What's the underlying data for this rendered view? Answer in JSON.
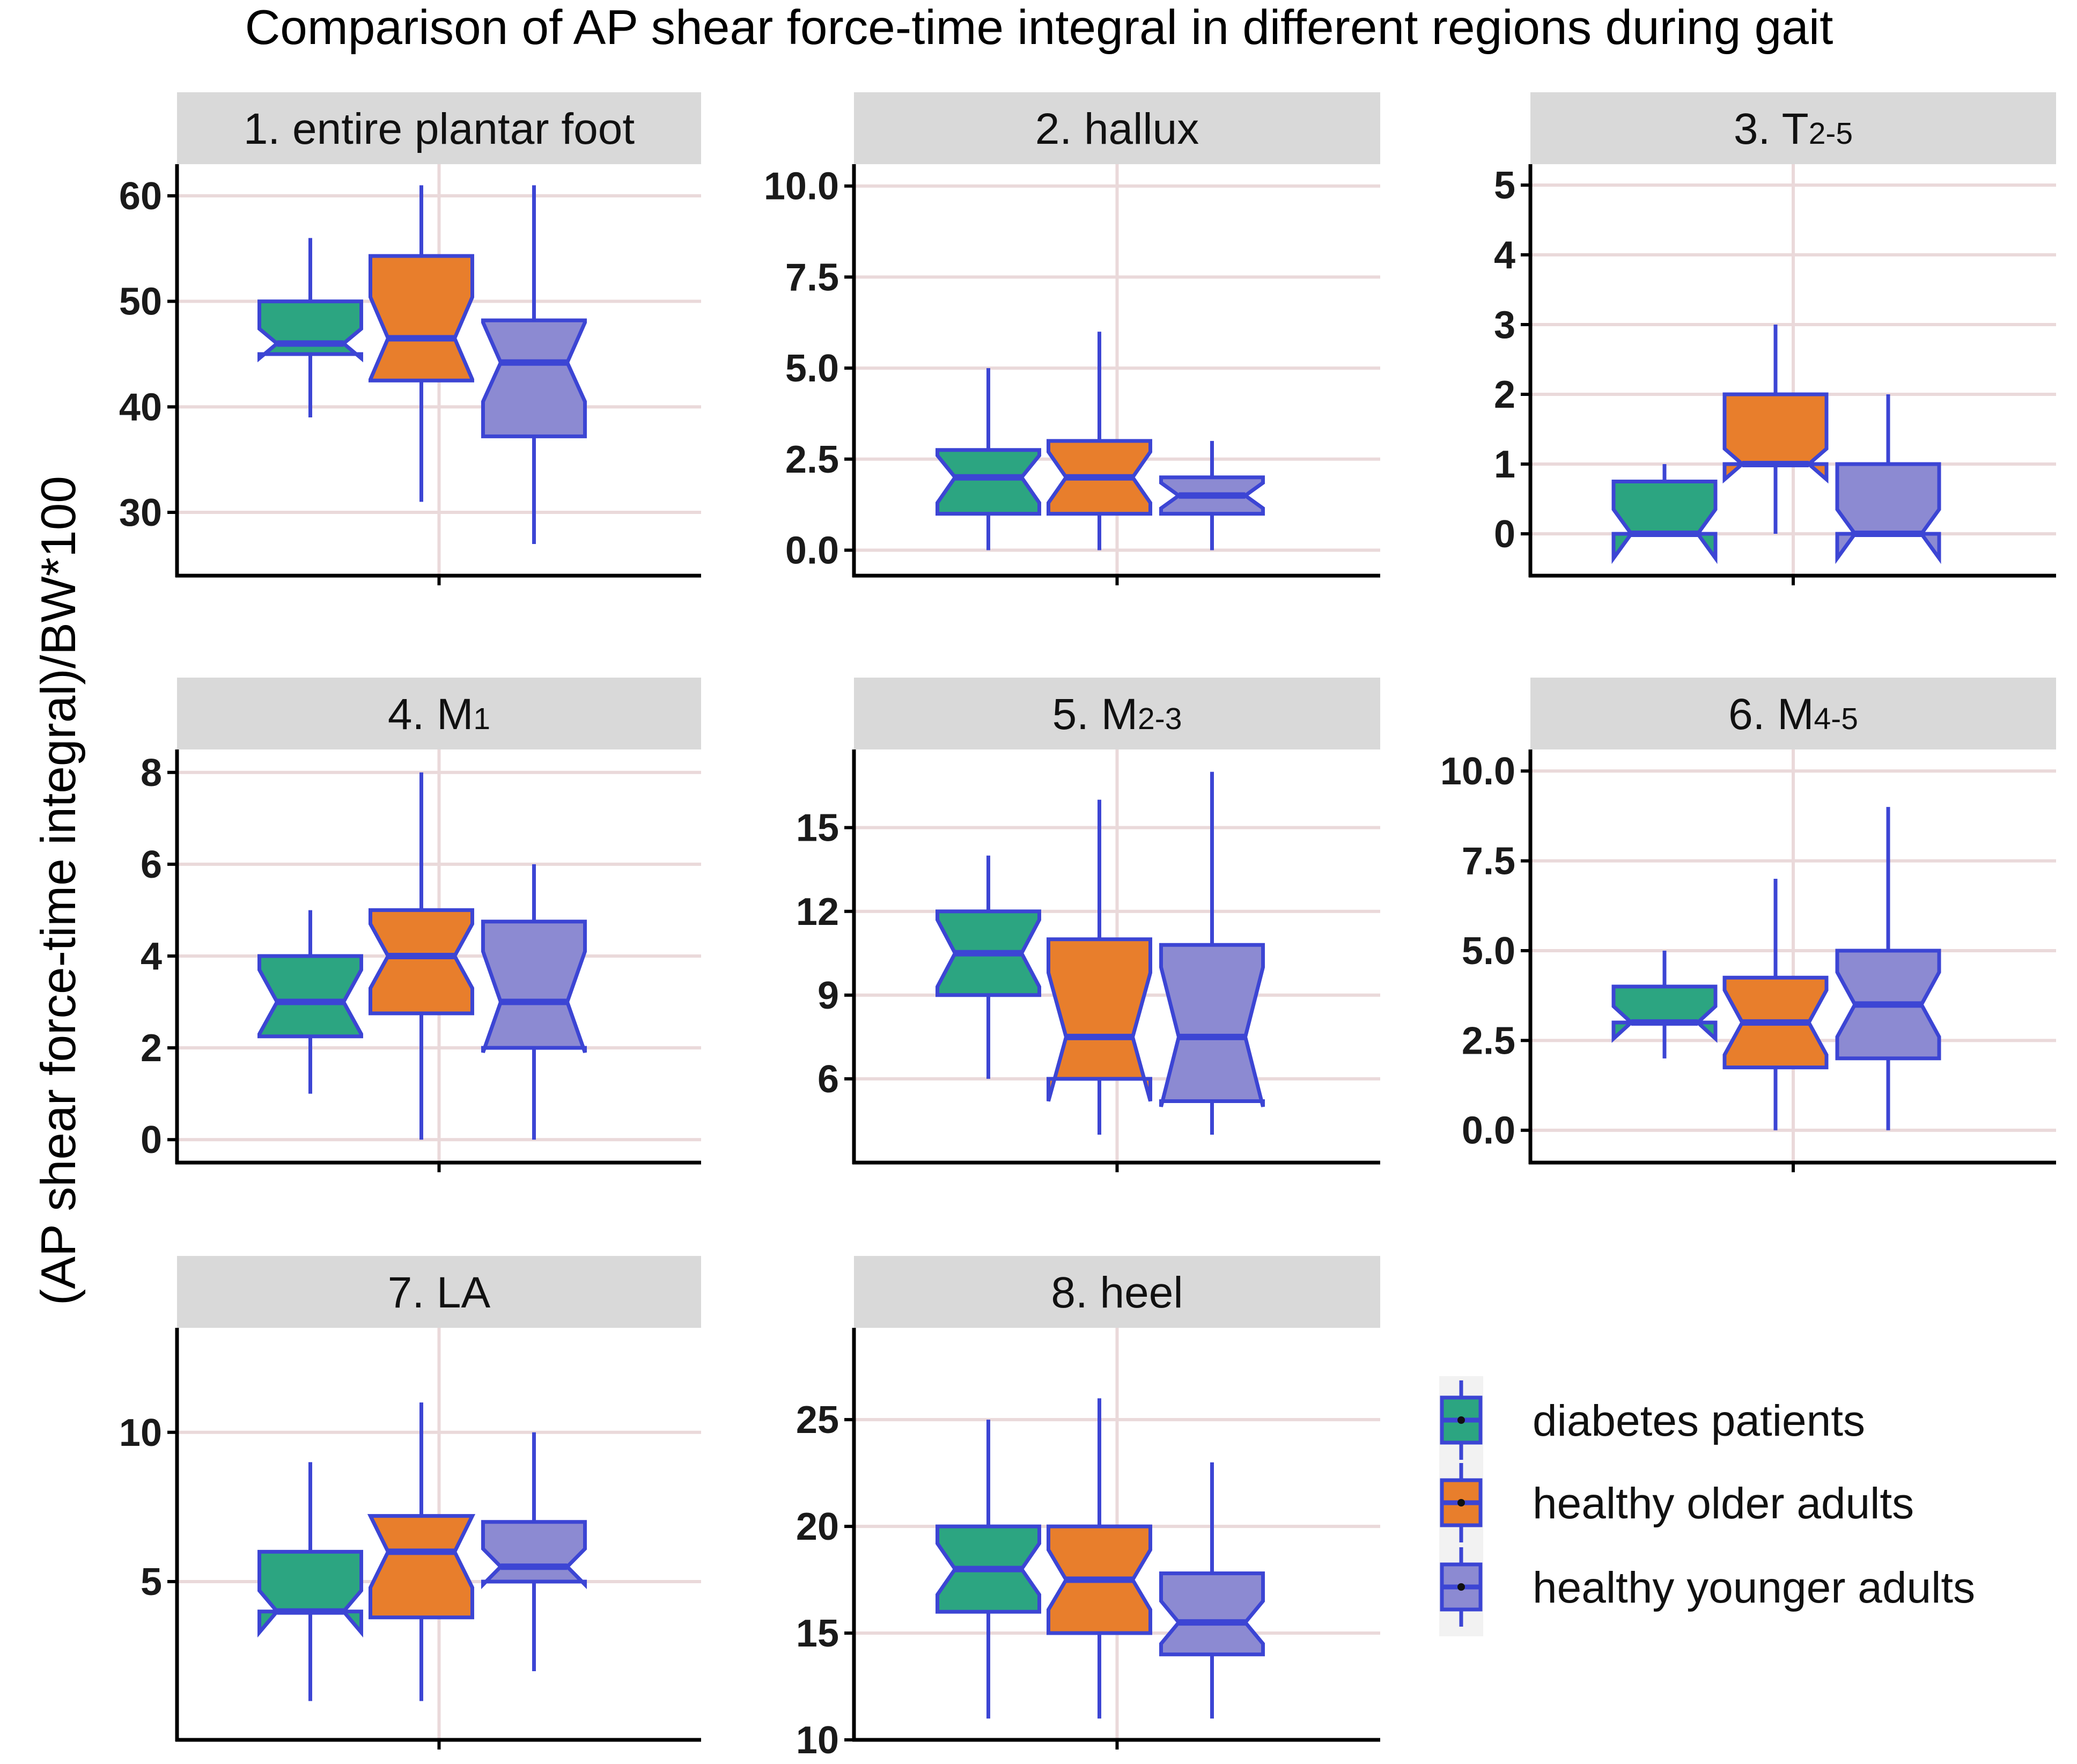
{
  "chart_data": {
    "type": "boxplot",
    "title": "Comparison of AP shear force-time integral in different regions during gait",
    "ylabel": "(AP shear force-time integral)/BW*100",
    "xlabel": "",
    "colors": {
      "diabetes patients": "#2ca581",
      "healthy older adults": "#e87e2c",
      "healthy younger adults": "#8c8ad2",
      "outline": "#3c45d4",
      "strip": "#d9d9d9",
      "grid": "#ead9da"
    },
    "legend": {
      "position": "bottom-right",
      "entries": [
        "diabetes patients",
        "healthy older adults",
        "healthy younger adults"
      ]
    },
    "panels": [
      {
        "title": "1. entire plantar foot",
        "title_main": "1. entire plantar foot",
        "title_sub": "",
        "ylim": [
          24,
          63
        ],
        "yticks": [
          30,
          40,
          50,
          60
        ],
        "ytick_labels": [
          "30",
          "40",
          "50",
          "60"
        ],
        "boxes": [
          {
            "group": "diabetes patients",
            "min": 39,
            "q1": 45,
            "median": 46,
            "q3": 50,
            "max": 56,
            "notch_low": 44.6,
            "notch_high": 47.4
          },
          {
            "group": "healthy older adults",
            "min": 31,
            "q1": 42.5,
            "median": 46.5,
            "q3": 54.3,
            "max": 61,
            "notch_low": 42.6,
            "notch_high": 50.4
          },
          {
            "group": "healthy younger adults",
            "min": 27,
            "q1": 37.2,
            "median": 44.2,
            "q3": 48.2,
            "max": 61,
            "notch_low": 40.5,
            "notch_high": 48
          }
        ]
      },
      {
        "title": "2. hallux",
        "title_main": "2. hallux",
        "title_sub": "",
        "ylim": [
          -0.7,
          10.6
        ],
        "yticks": [
          0,
          2.5,
          5,
          7.5,
          10
        ],
        "ytick_labels": [
          "0.0",
          "2.5",
          "5.0",
          "7.5",
          "10.0"
        ],
        "boxes": [
          {
            "group": "diabetes patients",
            "min": 0,
            "q1": 1,
            "median": 2,
            "q3": 2.75,
            "max": 5,
            "notch_low": 1.3,
            "notch_high": 2.6
          },
          {
            "group": "healthy older adults",
            "min": 0,
            "q1": 1,
            "median": 2,
            "q3": 3,
            "max": 6,
            "notch_low": 1.3,
            "notch_high": 2.7
          },
          {
            "group": "healthy younger adults",
            "min": 0,
            "q1": 1,
            "median": 1.5,
            "q3": 2,
            "max": 3,
            "notch_low": 1.15,
            "notch_high": 1.85
          }
        ]
      },
      {
        "title": "3. T2-5",
        "title_main": "3. T",
        "title_sub": "2-5",
        "ylim": [
          -0.6,
          5.3
        ],
        "yticks": [
          0,
          1,
          2,
          3,
          4,
          5
        ],
        "ytick_labels": [
          "0",
          "1",
          "2",
          "3",
          "4",
          "5"
        ],
        "boxes": [
          {
            "group": "diabetes patients",
            "min": 0,
            "q1": 0,
            "median": 0,
            "q3": 0.75,
            "max": 1,
            "notch_low": -0.35,
            "notch_high": 0.35
          },
          {
            "group": "healthy older adults",
            "min": 0,
            "q1": 1,
            "median": 1,
            "q3": 2,
            "max": 3,
            "notch_low": 0.78,
            "notch_high": 1.22
          },
          {
            "group": "healthy younger adults",
            "min": 0,
            "q1": 0,
            "median": 0,
            "q3": 1,
            "max": 2,
            "notch_low": -0.35,
            "notch_high": 0.35
          }
        ]
      },
      {
        "title": "4. M1",
        "title_main": "4. M",
        "title_sub": "1",
        "ylim": [
          -0.5,
          8.5
        ],
        "yticks": [
          0,
          2,
          4,
          6,
          8
        ],
        "ytick_labels": [
          "0",
          "2",
          "4",
          "6",
          "8"
        ],
        "boxes": [
          {
            "group": "diabetes patients",
            "min": 1,
            "q1": 2.25,
            "median": 3,
            "q3": 4,
            "max": 5,
            "notch_low": 2.3,
            "notch_high": 3.7
          },
          {
            "group": "healthy older adults",
            "min": 0,
            "q1": 2.75,
            "median": 4,
            "q3": 5,
            "max": 8,
            "notch_low": 3.3,
            "notch_high": 4.7
          },
          {
            "group": "healthy younger adults",
            "min": 0,
            "q1": 2,
            "median": 3,
            "q3": 4.75,
            "max": 6,
            "notch_low": 1.9,
            "notch_high": 4.1
          }
        ]
      },
      {
        "title": "5. M2-3",
        "title_main": "5. M",
        "title_sub": "2-3",
        "ylim": [
          3,
          17.8
        ],
        "yticks": [
          6,
          9,
          12,
          15
        ],
        "ytick_labels": [
          "6",
          "9",
          "12",
          "15"
        ],
        "boxes": [
          {
            "group": "diabetes patients",
            "min": 6,
            "q1": 9,
            "median": 10.5,
            "q3": 12,
            "max": 14,
            "notch_low": 9.3,
            "notch_high": 11.7
          },
          {
            "group": "healthy older adults",
            "min": 4,
            "q1": 6,
            "median": 7.5,
            "q3": 11,
            "max": 16,
            "notch_low": 5.2,
            "notch_high": 9.8
          },
          {
            "group": "healthy younger adults",
            "min": 4,
            "q1": 5.2,
            "median": 7.5,
            "q3": 10.8,
            "max": 17,
            "notch_low": 5.0,
            "notch_high": 10
          }
        ]
      },
      {
        "title": "6. M4-5",
        "title_main": "6. M",
        "title_sub": "4-5",
        "ylim": [
          -0.9,
          10.6
        ],
        "yticks": [
          0,
          2.5,
          5,
          7.5,
          10
        ],
        "ytick_labels": [
          "0.0",
          "2.5",
          "5.0",
          "7.5",
          "10.0"
        ],
        "boxes": [
          {
            "group": "diabetes patients",
            "min": 2,
            "q1": 3,
            "median": 3,
            "q3": 4,
            "max": 5,
            "notch_low": 2.55,
            "notch_high": 3.45
          },
          {
            "group": "healthy older adults",
            "min": 0,
            "q1": 1.75,
            "median": 3,
            "q3": 4.25,
            "max": 7,
            "notch_low": 2.1,
            "notch_high": 3.9
          },
          {
            "group": "healthy younger adults",
            "min": 0,
            "q1": 2,
            "median": 3.5,
            "q3": 5,
            "max": 9,
            "notch_low": 2.6,
            "notch_high": 4.4
          }
        ]
      },
      {
        "title": "7. LA",
        "title_main": "7. LA",
        "title_sub": "",
        "ylim": [
          -0.3,
          13.5
        ],
        "yticks": [
          5,
          10
        ],
        "ytick_labels": [
          "5",
          "10"
        ],
        "boxes": [
          {
            "group": "diabetes patients",
            "min": 1,
            "q1": 4,
            "median": 4,
            "q3": 6,
            "max": 9,
            "notch_low": 3.3,
            "notch_high": 4.7
          },
          {
            "group": "healthy older adults",
            "min": 1,
            "q1": 3.8,
            "median": 6,
            "q3": 7.2,
            "max": 11,
            "notch_low": 4.8,
            "notch_high": 7.2
          },
          {
            "group": "healthy younger adults",
            "min": 2,
            "q1": 5,
            "median": 5.5,
            "q3": 7,
            "max": 10,
            "notch_low": 4.9,
            "notch_high": 6.1
          }
        ]
      },
      {
        "title": "8. heel",
        "title_main": "8. heel",
        "title_sub": "",
        "ylim": [
          10,
          29.3
        ],
        "yticks": [
          10,
          15,
          20,
          25
        ],
        "ytick_labels": [
          "10",
          "15",
          "20",
          "25"
        ],
        "boxes": [
          {
            "group": "diabetes patients",
            "min": 11,
            "q1": 16,
            "median": 18,
            "q3": 20,
            "max": 25,
            "notch_low": 16.8,
            "notch_high": 19.2
          },
          {
            "group": "healthy older adults",
            "min": 11,
            "q1": 15,
            "median": 17.5,
            "q3": 20,
            "max": 26,
            "notch_low": 16.1,
            "notch_high": 18.9
          },
          {
            "group": "healthy younger adults",
            "min": 11,
            "q1": 14,
            "median": 15.5,
            "q3": 17.8,
            "max": 23,
            "notch_low": 14.5,
            "notch_high": 16.5
          }
        ]
      }
    ]
  }
}
